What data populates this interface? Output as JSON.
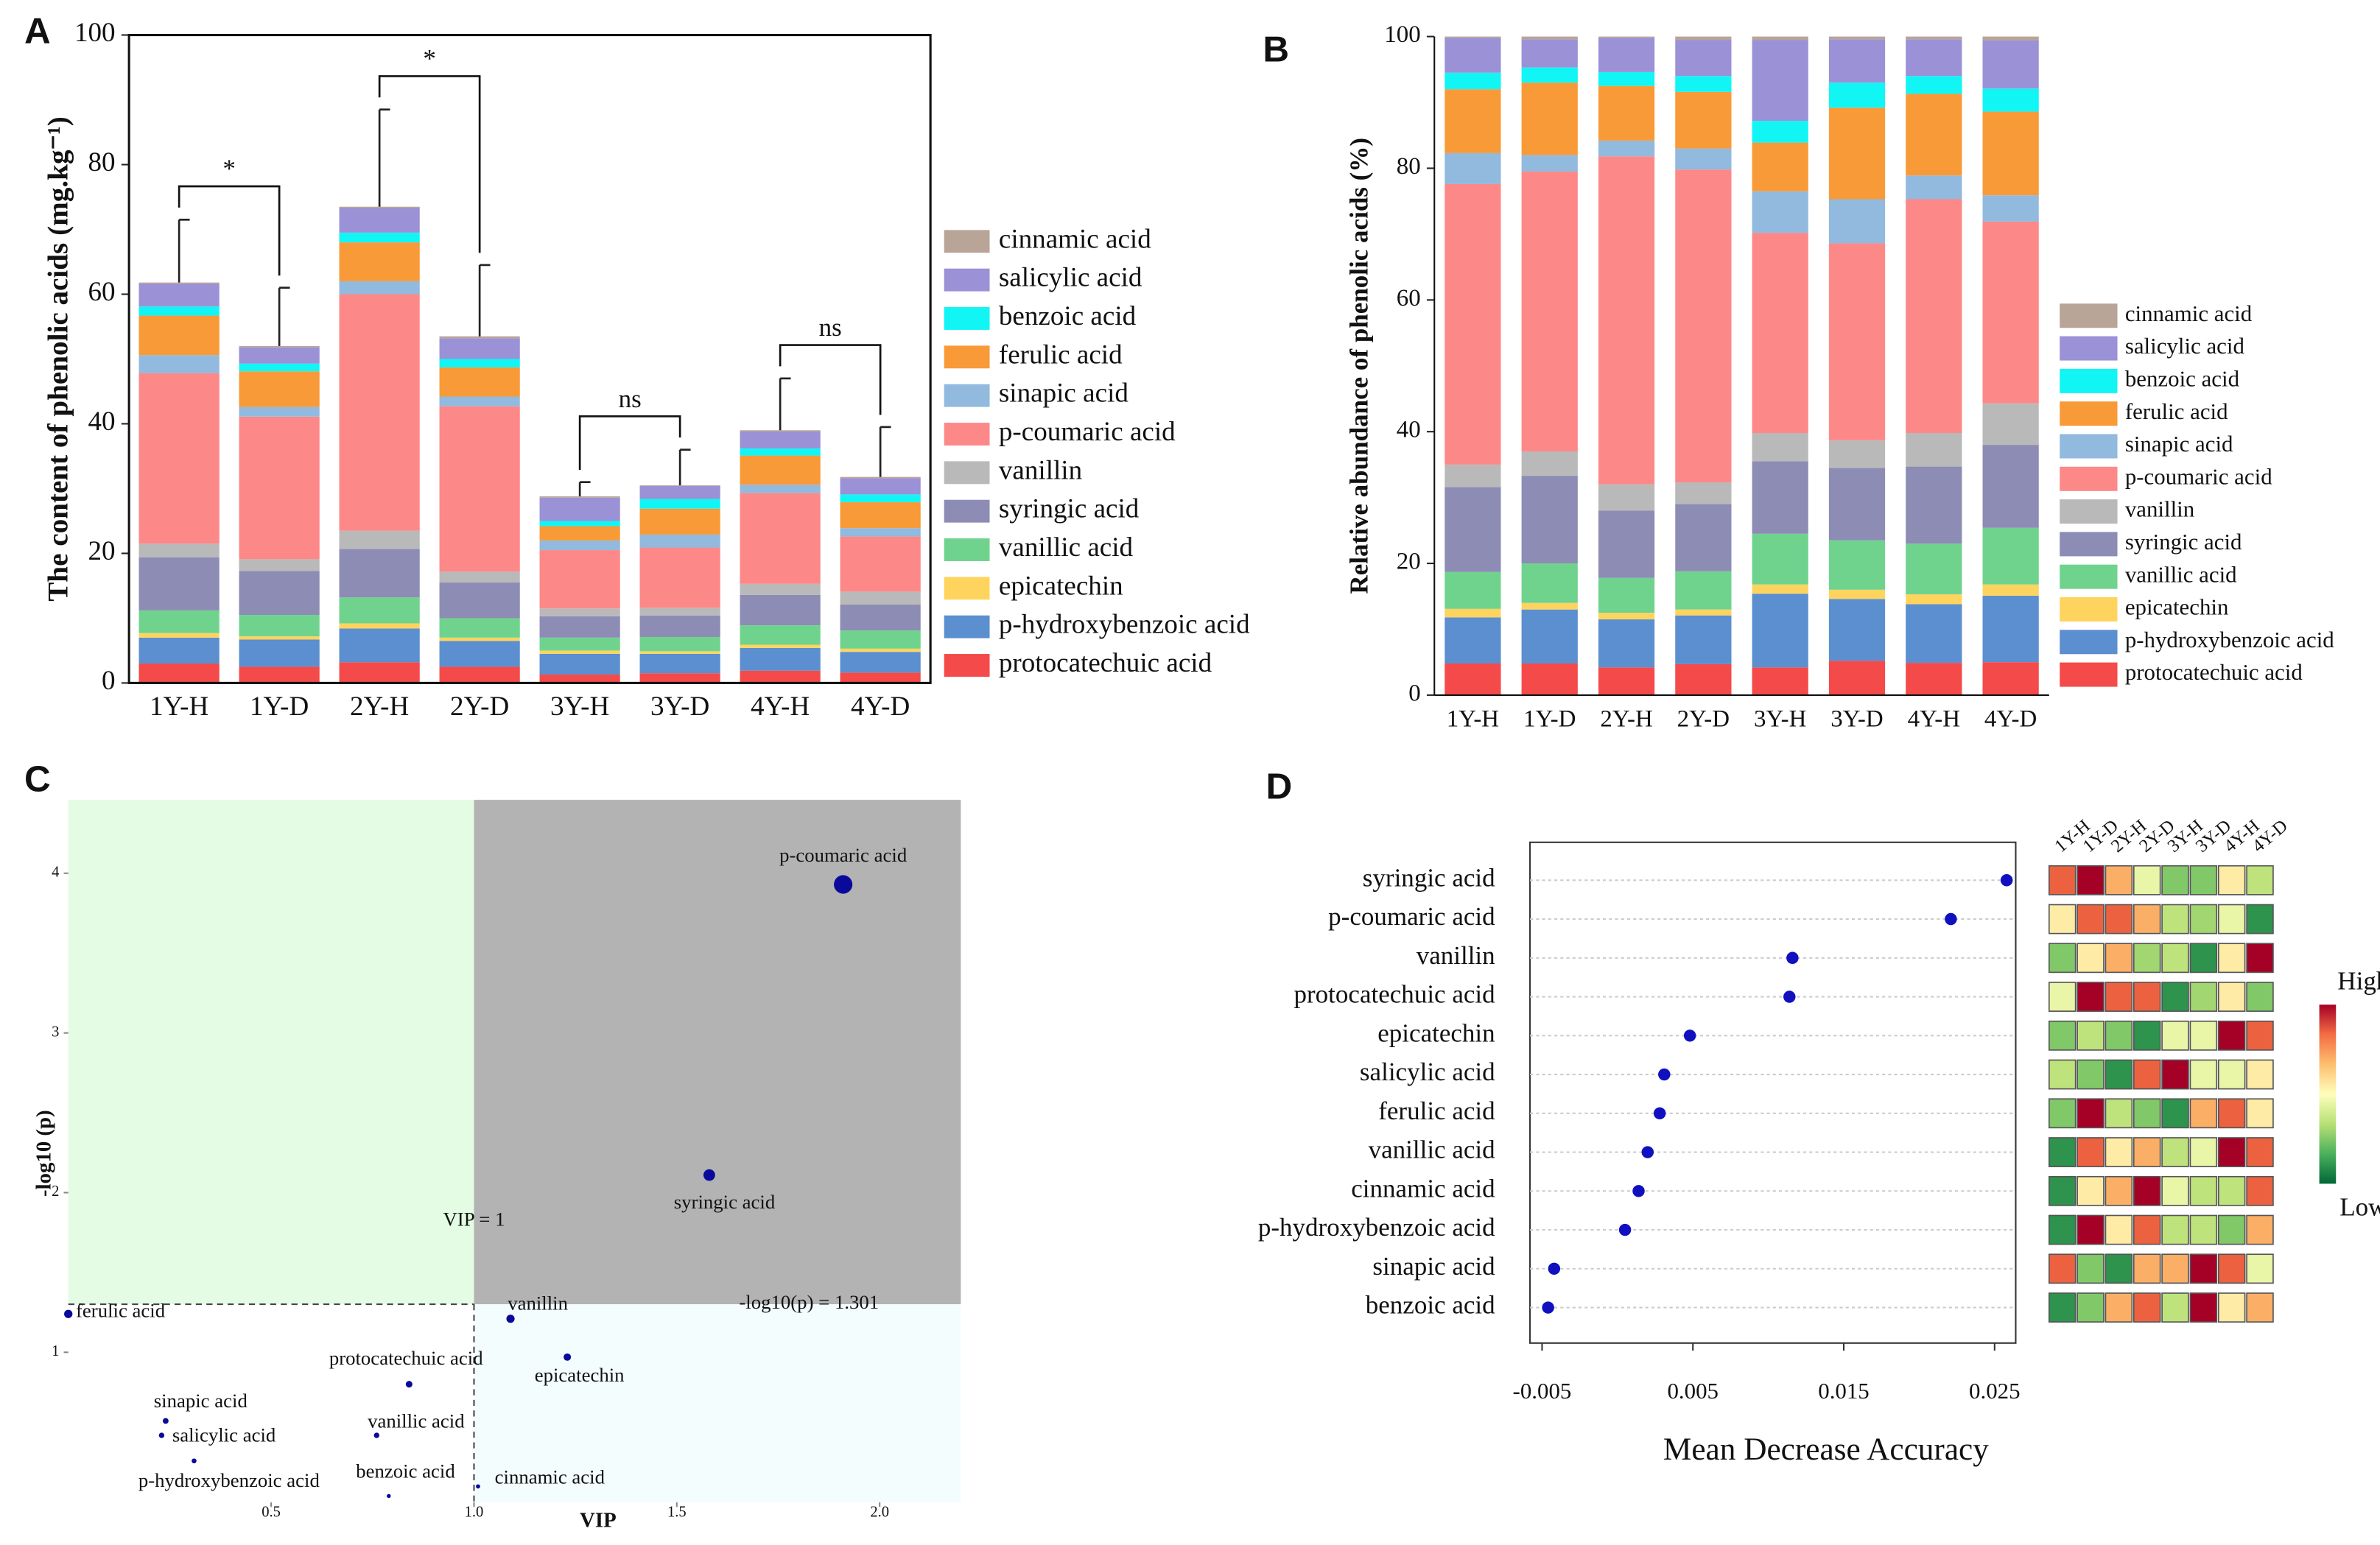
{
  "chart_data": [
    {
      "type": "stacked_bar",
      "panel": "A",
      "ylabel": "The content of phenolic acids  (mg.kg⁻¹)",
      "categories": [
        "1Y-H",
        "1Y-D",
        "2Y-H",
        "2Y-D",
        "3Y-H",
        "3Y-D",
        "4Y-H",
        "4Y-D"
      ],
      "series": [
        {
          "name": "protocatechuic acid",
          "color": "#f44a4a",
          "values": [
            3.0,
            2.5,
            3.2,
            2.5,
            1.3,
            1.5,
            1.9,
            1.6
          ]
        },
        {
          "name": "p-hydroxybenzoic acid",
          "color": "#5b8fcf",
          "values": [
            4.0,
            4.2,
            5.2,
            4.0,
            3.2,
            3.0,
            3.5,
            3.2
          ]
        },
        {
          "name": "epicatechin",
          "color": "#ffd45e",
          "values": [
            0.7,
            0.5,
            0.8,
            0.5,
            0.5,
            0.4,
            0.5,
            0.5
          ]
        },
        {
          "name": "vanillic acid",
          "color": "#6fd38e",
          "values": [
            3.5,
            3.3,
            4.0,
            3.0,
            2.0,
            2.2,
            3.0,
            2.8
          ]
        },
        {
          "name": "syringic acid",
          "color": "#8c8cb5",
          "values": [
            8.2,
            6.8,
            7.5,
            5.5,
            3.3,
            3.3,
            4.7,
            4.0
          ]
        },
        {
          "name": "vanillin",
          "color": "#b9b9b9",
          "values": [
            2.1,
            1.8,
            2.8,
            1.7,
            1.2,
            1.2,
            1.7,
            2.0
          ]
        },
        {
          "name": "p-coumaric acid",
          "color": "#fd8888",
          "values": [
            26.3,
            22.0,
            36.5,
            25.5,
            9.0,
            9.3,
            14.0,
            8.5
          ]
        },
        {
          "name": "sinapic acid",
          "color": "#92b9de",
          "values": [
            2.8,
            1.5,
            2.0,
            1.5,
            1.5,
            2.0,
            1.3,
            1.3
          ]
        },
        {
          "name": "ferulic acid",
          "color": "#f89a38",
          "values": [
            6.1,
            5.5,
            6.0,
            4.5,
            2.2,
            4.0,
            4.5,
            4.0
          ]
        },
        {
          "name": "benzoic acid",
          "color": "#12f5f5",
          "values": [
            1.4,
            1.2,
            1.5,
            1.3,
            0.8,
            1.5,
            1.1,
            1.2
          ]
        },
        {
          "name": "salicylic acid",
          "color": "#9b91d6",
          "values": [
            3.5,
            2.5,
            3.8,
            3.2,
            3.6,
            2.0,
            2.6,
            2.5
          ]
        },
        {
          "name": "cinnamic acid",
          "color": "#b9a498",
          "values": [
            0.2,
            0.2,
            0.2,
            0.3,
            0.2,
            0.1,
            0.2,
            0.2
          ]
        }
      ],
      "errors": [
        9.7,
        9.0,
        15.0,
        11.0,
        2.2,
        5.5,
        8.0,
        7.7
      ],
      "annotations": [
        {
          "between": [
            "1Y-H",
            "1Y-D"
          ],
          "text": "*"
        },
        {
          "between": [
            "2Y-H",
            "2Y-D"
          ],
          "text": "*"
        },
        {
          "between": [
            "3Y-H",
            "3Y-D"
          ],
          "text": "ns"
        },
        {
          "between": [
            "4Y-H",
            "4Y-D"
          ],
          "text": "ns"
        }
      ],
      "ylim": [
        0,
        100
      ],
      "yticks": [
        0,
        20,
        40,
        60,
        80,
        100
      ],
      "frame": true
    },
    {
      "type": "stacked_bar",
      "panel": "B",
      "ylabel": "Relative abundance of phenolic acids (%)",
      "categories": [
        "1Y-H",
        "1Y-D",
        "2Y-H",
        "2Y-D",
        "3Y-H",
        "3Y-D",
        "4Y-H",
        "4Y-D"
      ],
      "series": [
        {
          "name": "protocatechuic acid",
          "color": "#f44a4a",
          "values": [
            4.8,
            4.8,
            4.2,
            4.7,
            4.2,
            5.2,
            4.9,
            5.0
          ]
        },
        {
          "name": "p-hydroxybenzoic acid",
          "color": "#5b8fcf",
          "values": [
            7.0,
            8.2,
            7.3,
            7.4,
            11.2,
            9.4,
            8.9,
            10.1
          ]
        },
        {
          "name": "epicatechin",
          "color": "#ffd45e",
          "values": [
            1.3,
            1.0,
            1.0,
            0.9,
            1.4,
            1.4,
            1.5,
            1.7
          ]
        },
        {
          "name": "vanillic acid",
          "color": "#6fd38e",
          "values": [
            5.6,
            6.0,
            5.3,
            5.8,
            7.7,
            7.5,
            7.7,
            8.6
          ]
        },
        {
          "name": "syringic acid",
          "color": "#8c8cb5",
          "values": [
            12.9,
            13.3,
            10.2,
            10.2,
            11.0,
            11.0,
            11.7,
            12.6
          ]
        },
        {
          "name": "vanillin",
          "color": "#b9b9b9",
          "values": [
            3.4,
            3.7,
            4.0,
            3.3,
            4.3,
            4.2,
            5.1,
            6.3
          ]
        },
        {
          "name": "p-coumaric acid",
          "color": "#fd8888",
          "values": [
            42.6,
            42.5,
            49.8,
            47.5,
            30.4,
            29.9,
            35.5,
            27.6
          ]
        },
        {
          "name": "sinapic acid",
          "color": "#92b9de",
          "values": [
            4.7,
            2.5,
            2.4,
            3.2,
            6.3,
            6.7,
            3.6,
            4.0
          ]
        },
        {
          "name": "ferulic acid",
          "color": "#f89a38",
          "values": [
            9.7,
            11.0,
            8.3,
            8.6,
            7.4,
            13.9,
            12.4,
            12.7
          ]
        },
        {
          "name": "benzoic acid",
          "color": "#12f5f5",
          "values": [
            2.5,
            2.3,
            2.1,
            2.4,
            3.3,
            3.8,
            2.7,
            3.5
          ]
        },
        {
          "name": "salicylic acid",
          "color": "#9b91d6",
          "values": [
            5.3,
            4.3,
            5.2,
            5.5,
            12.3,
            6.6,
            5.6,
            7.3
          ]
        },
        {
          "name": "cinnamic acid",
          "color": "#b9a498",
          "values": [
            0.2,
            0.4,
            0.2,
            0.5,
            0.5,
            0.4,
            0.4,
            0.6
          ]
        }
      ],
      "ylim": [
        0,
        100
      ],
      "yticks": [
        0,
        20,
        40,
        60,
        80,
        100
      ],
      "frame": false
    },
    {
      "type": "scatter",
      "panel": "C",
      "xlabel": "VIP",
      "ylabel": "-log10 (p)",
      "color": "#0a0a9a",
      "labels": [
        "p-coumaric acid",
        "syringic acid",
        "vanillin",
        "epicatechin",
        "ferulic acid",
        "protocatechuic acid",
        "sinapic acid",
        "salicylic acid",
        "p-hydroxybenzoic acid",
        "vanillic acid",
        "benzoic acid",
        "cinnamic acid"
      ],
      "x": [
        1.91,
        1.58,
        1.09,
        1.23,
        0.0,
        0.84,
        0.24,
        0.23,
        0.31,
        0.76,
        0.79,
        1.01
      ],
      "y": [
        3.93,
        2.11,
        1.21,
        0.97,
        1.24,
        0.8,
        0.57,
        0.48,
        0.32,
        0.48,
        0.1,
        0.16
      ],
      "xlim": [
        0,
        2.2
      ],
      "ylim": [
        0.06,
        4.46
      ],
      "xticks": [
        0.5,
        {
          "value": 1,
          "label": "1.0"
        },
        1.5,
        {
          "value": 2,
          "label": "2.0"
        }
      ],
      "yticks": [
        1,
        2,
        3,
        4
      ],
      "vline": {
        "value": 1,
        "label": "VIP = 1"
      },
      "hline": {
        "value": 1.301,
        "label": "-log10(p) = 1.301"
      },
      "region_colors": {
        "upper_left": "#e3fce3",
        "upper_right": "#b3b3b3",
        "lower_right": "#f3fdfd"
      }
    },
    {
      "type": "dot",
      "panel": "D",
      "xlabel": "Mean Decrease Accuracy",
      "color": "#1010c0",
      "categories": [
        "syringic acid",
        "p-coumaric acid",
        "vanillin",
        "protocatechuic acid",
        "epicatechin",
        "salicylic acid",
        "ferulic acid",
        "vanillic acid",
        "cinnamic acid",
        "p-hydroxybenzoic acid",
        "sinapic acid",
        "benzoic acid"
      ],
      "values": [
        0.0258,
        0.0221,
        0.0116,
        0.0114,
        0.0048,
        0.0031,
        0.0028,
        0.002,
        0.0014,
        0.0005,
        -0.0042,
        -0.0046
      ],
      "xlim": [
        -0.0058,
        0.0264
      ],
      "xticks": [
        -0.005,
        0.005,
        0.015,
        0.025
      ],
      "heatmap": {
        "columns": [
          "1Y-H",
          "1Y-D",
          "2Y-H",
          "2Y-D",
          "3Y-H",
          "3Y-D",
          "4Y-H",
          "4Y-D"
        ],
        "values": [
          [
            0.85,
            1.0,
            0.7,
            0.45,
            0.25,
            0.25,
            0.55,
            0.35
          ],
          [
            0.55,
            0.85,
            0.85,
            0.7,
            0.35,
            0.3,
            0.45,
            0.1
          ],
          [
            0.25,
            0.55,
            0.7,
            0.3,
            0.35,
            0.1,
            0.55,
            1.0
          ],
          [
            0.45,
            1.0,
            0.85,
            0.85,
            0.1,
            0.3,
            0.55,
            0.25
          ],
          [
            0.25,
            0.35,
            0.25,
            0.1,
            0.45,
            0.45,
            1.0,
            0.85
          ],
          [
            0.35,
            0.25,
            0.1,
            0.85,
            1.0,
            0.45,
            0.45,
            0.55
          ],
          [
            0.25,
            1.0,
            0.35,
            0.25,
            0.1,
            0.7,
            0.85,
            0.55
          ],
          [
            0.1,
            0.85,
            0.55,
            0.7,
            0.35,
            0.45,
            1.0,
            0.85
          ],
          [
            0.1,
            0.55,
            0.7,
            1.0,
            0.45,
            0.35,
            0.35,
            0.85
          ],
          [
            0.1,
            1.0,
            0.55,
            0.85,
            0.35,
            0.35,
            0.25,
            0.7
          ],
          [
            0.85,
            0.25,
            0.1,
            0.7,
            0.7,
            1.0,
            0.85,
            0.45
          ],
          [
            0.1,
            0.25,
            0.7,
            0.85,
            0.35,
            1.0,
            0.55,
            0.7
          ]
        ],
        "zlim": [
          0,
          1
        ],
        "colors": [
          "#006837",
          "#4bb05c",
          "#b7e075",
          "#fefebd",
          "#fdbf6f",
          "#f46d43",
          "#a50026"
        ],
        "high": "High",
        "low": "Low"
      }
    }
  ]
}
